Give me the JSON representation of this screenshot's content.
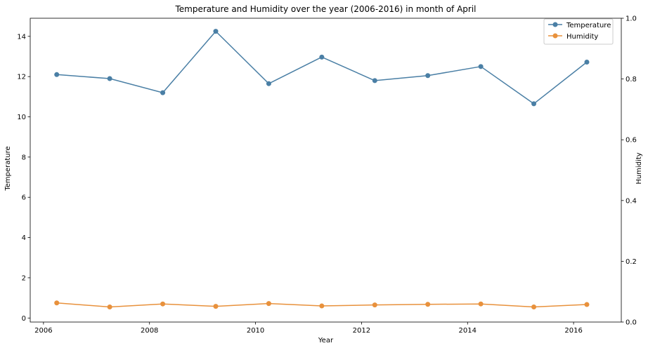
{
  "chart_data": {
    "type": "line",
    "title": "Temperature and Humidity over the year (2006-2016) in month of April",
    "xlabel": "Year",
    "ylabel_left": "Temperature",
    "ylabel_right": "Humidity",
    "x": [
      2006.25,
      2007.25,
      2008.25,
      2009.25,
      2010.25,
      2011.25,
      2012.25,
      2013.25,
      2014.25,
      2015.25,
      2016.25
    ],
    "xlim": [
      2005.75,
      2016.9
    ],
    "xticks": [
      2006,
      2008,
      2010,
      2012,
      2014,
      2016
    ],
    "ylim_left": [
      -0.2,
      14.9
    ],
    "yticks_left": [
      0,
      2,
      4,
      6,
      8,
      10,
      12,
      14
    ],
    "ylim_right": [
      0,
      1.0
    ],
    "yticks_right": [
      0.0,
      0.2,
      0.4,
      0.6,
      0.8,
      1.0
    ],
    "legend_position": "top-right",
    "grid": false,
    "series": [
      {
        "name": "Temperature",
        "axis": "left",
        "color": "#4a7fa5",
        "values": [
          12.1,
          11.9,
          11.2,
          14.25,
          11.65,
          12.97,
          11.8,
          12.05,
          12.5,
          10.65,
          12.72
        ]
      },
      {
        "name": "Humidity",
        "axis": "left",
        "color": "#e8913c",
        "values": [
          0.75,
          0.55,
          0.7,
          0.58,
          0.72,
          0.6,
          0.65,
          0.68,
          0.7,
          0.55,
          0.67
        ]
      }
    ]
  }
}
